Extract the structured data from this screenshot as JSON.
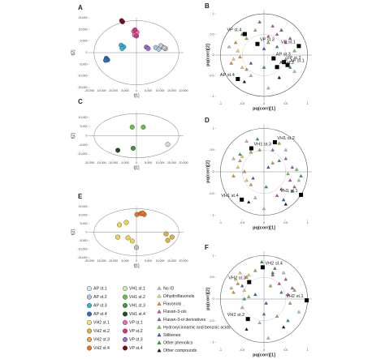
{
  "chart_data": [
    {
      "type": "scatter",
      "label": "A",
      "xlabel": "t[1]",
      "ylabel": "t[2]",
      "xlim": [
        -20000,
        20000
      ],
      "ylim": [
        -15000,
        15000
      ],
      "xticks": [
        {
          "value": -20000,
          "label": "-20,000"
        },
        {
          "value": -15000,
          "label": "-15,000"
        },
        {
          "value": -10000,
          "label": "-10,000"
        },
        {
          "value": -5000,
          "label": "-5,000"
        },
        0,
        {
          "value": 5000,
          "label": "5,000"
        },
        {
          "value": 10000,
          "label": "10,000"
        },
        {
          "value": 15000,
          "label": "15,000"
        },
        {
          "value": 20000,
          "label": "20,000"
        }
      ],
      "yticks": [
        {
          "value": -15000,
          "label": "-15,000"
        },
        {
          "value": -10000,
          "label": "-10,000"
        },
        {
          "value": -5000,
          "label": "-5,000"
        },
        0,
        {
          "value": 5000,
          "label": "5,000"
        },
        {
          "value": 10000,
          "label": "10,000"
        },
        {
          "value": 15000,
          "label": "15,000"
        }
      ],
      "series": [
        {
          "color": "#7a0c1a",
          "x": [
            -6300,
            -5900
          ],
          "values": [
            13800,
            13300
          ]
        },
        {
          "color": "#f06aa8",
          "x": [
            -1200,
            -400,
            -800,
            200
          ],
          "values": [
            9200,
            8400,
            7600,
            8800
          ]
        },
        {
          "color": "#d63384",
          "x": [
            -600,
            0
          ],
          "values": [
            9800,
            7200
          ]
        },
        {
          "color": "#33b5d6",
          "x": [
            -6500,
            -5400,
            -6100
          ],
          "values": [
            3200,
            2500,
            1800
          ]
        },
        {
          "color": "#2f6db5",
          "x": [
            -12800,
            -12200,
            -13100
          ],
          "values": [
            -2400,
            -3100,
            -3300
          ]
        },
        {
          "color": "#9b6bc9",
          "x": [
            4200,
            5000
          ],
          "values": [
            2400,
            1800
          ]
        },
        {
          "color": "#a6c8e6",
          "x": [
            8200,
            9500,
            11000,
            12300
          ],
          "values": [
            2200,
            1500,
            2500,
            1700
          ]
        },
        {
          "color": "#c9c9c9",
          "x": [
            10300,
            11800
          ],
          "values": [
            3000,
            2100
          ]
        }
      ]
    },
    {
      "type": "scatter",
      "label": "B",
      "xlabel": "pq(corr)[1]",
      "ylabel": "pq(corr)[2]",
      "xlim": [
        -1.1,
        1.1
      ],
      "ylim": [
        -1.1,
        1.1
      ],
      "xticks": [
        -1,
        -0.5,
        0,
        0.5,
        1
      ],
      "yticks": [
        -1,
        -0.5,
        0,
        0.5,
        1
      ],
      "series": [
        {
          "color": "#bdbdbd",
          "x": [
            -0.8,
            -0.3,
            0.4,
            0.7,
            0.1
          ],
          "values": [
            0.2,
            -0.5,
            0.6,
            -0.4,
            -0.8
          ]
        },
        {
          "color": "#f2d15a",
          "x": [
            -0.7,
            -0.5,
            -0.6
          ],
          "values": [
            -0.1,
            -0.3,
            0.1
          ]
        },
        {
          "color": "#f08a24",
          "x": [
            -0.75,
            -0.55,
            -0.4,
            -0.65
          ],
          "values": [
            -0.2,
            -0.05,
            -0.35,
            0.3
          ]
        },
        {
          "color": "#e0409a",
          "x": [
            0.3,
            0.5,
            0.2
          ],
          "values": [
            0.5,
            0.3,
            0.7
          ]
        },
        {
          "color": "#9b59b6",
          "x": [
            0.4,
            0.6,
            0.1
          ],
          "values": [
            0.6,
            0.4,
            0.45
          ]
        },
        {
          "color": "#7cc242",
          "x": [
            -0.2,
            0.1,
            0.5,
            -0.4,
            0.7
          ],
          "values": [
            0.6,
            0.3,
            -0.1,
            0.4,
            0.1
          ]
        },
        {
          "color": "#2e5cb8",
          "x": [
            -0.3,
            0.0
          ],
          "values": [
            -0.2,
            0.15
          ]
        },
        {
          "color": "#2ca02c",
          "x": [
            -0.5,
            0.0,
            0.3,
            0.6,
            -0.1
          ],
          "values": [
            0.5,
            -0.3,
            0.2,
            -0.3,
            0.8
          ]
        },
        {
          "color": "#111111",
          "x": [
            -0.45,
            0.35
          ],
          "values": [
            -0.65,
            -0.55
          ]
        }
      ],
      "observations": {
        "labels": [
          "VP st.4",
          "VP st.3",
          "VP st.1",
          "AP st.3",
          "VP st.2",
          "AP st.2",
          "AP st.1",
          "AP st.4"
        ],
        "x": [
          -0.44,
          -0.15,
          0.8,
          0.22,
          0.46,
          0.3,
          0.54,
          -0.6
        ],
        "values": [
          0.51,
          0.27,
          0.22,
          -0.08,
          -0.17,
          -0.29,
          -0.24,
          -0.58
        ]
      }
    },
    {
      "type": "scatter",
      "label": "C",
      "xlabel": "t[1]",
      "ylabel": "t[2]",
      "xlim": [
        -20000,
        20000
      ],
      "ylim": [
        -13000,
        13000
      ],
      "xticks": [
        {
          "value": -20000,
          "label": "-20,000"
        },
        {
          "value": -15000,
          "label": "-15,000"
        },
        {
          "value": -10000,
          "label": "-10,000"
        },
        {
          "value": -5000,
          "label": "-5,000"
        },
        0,
        {
          "value": 5000,
          "label": "5,000"
        },
        {
          "value": 10000,
          "label": "10,000"
        },
        {
          "value": 15000,
          "label": "15,000"
        },
        {
          "value": 20000,
          "label": "20,000"
        }
      ],
      "yticks": [
        {
          "value": -10000,
          "label": "-10,000"
        },
        {
          "value": -5000,
          "label": "-5,000"
        },
        0,
        {
          "value": 5000,
          "label": "5,000"
        },
        {
          "value": 10000,
          "label": "10,000"
        }
      ],
      "series": [
        {
          "color": "#6abf45",
          "x": [
            -1800,
            2900
          ],
          "values": [
            4700,
            4700
          ]
        },
        {
          "color": "#3c9a2e",
          "x": [
            -1400
          ],
          "values": [
            -6800
          ]
        },
        {
          "color": "#1f4d1a",
          "x": [
            -7900
          ],
          "values": [
            -7900
          ]
        },
        {
          "color": "#dcdcdc",
          "x": [
            13300
          ],
          "values": [
            -4700
          ]
        }
      ]
    },
    {
      "type": "scatter",
      "label": "D",
      "xlabel": "pq(corr)[1]",
      "ylabel": "pq(corr)[2]",
      "xlim": [
        -1.1,
        1.1
      ],
      "ylim": [
        -1.1,
        1.1
      ],
      "xticks": [
        -1,
        -0.5,
        0,
        0.5,
        1
      ],
      "yticks": [
        -1,
        -0.5,
        0,
        0.5,
        1
      ],
      "series": [
        {
          "color": "#bdbdbd",
          "x": [
            -0.7,
            -0.2,
            0.5,
            0.8,
            0.0,
            -0.4
          ],
          "values": [
            0.3,
            -0.6,
            0.5,
            -0.2,
            -0.85,
            0.7
          ]
        },
        {
          "color": "#f2d15a",
          "x": [
            -0.6,
            -0.4,
            -0.5
          ],
          "values": [
            0.1,
            -0.2,
            0.35
          ]
        },
        {
          "color": "#f08a24",
          "x": [
            -0.7,
            -0.45,
            -0.3,
            -0.55
          ],
          "values": [
            -0.1,
            0.0,
            -0.3,
            0.25
          ]
        },
        {
          "color": "#e0409a",
          "x": [
            0.4,
            0.6,
            0.3,
            0.7
          ],
          "values": [
            -0.4,
            -0.2,
            -0.55,
            -0.35
          ]
        },
        {
          "color": "#9b59b6",
          "x": [
            0.5,
            0.2,
            0.65
          ],
          "values": [
            0.3,
            0.5,
            0.1
          ]
        },
        {
          "color": "#7cc242",
          "x": [
            -0.1,
            0.2,
            0.55,
            -0.3,
            0.75,
            0.35
          ],
          "values": [
            0.5,
            0.2,
            -0.05,
            0.45,
            0.05,
            0.65
          ]
        },
        {
          "color": "#2e5cb8",
          "x": [
            -0.25,
            0.1,
            0.45
          ],
          "values": [
            -0.15,
            0.1,
            -0.65
          ]
        },
        {
          "color": "#2ca02c",
          "x": [
            -0.55,
            0.05,
            0.35,
            0.65,
            -0.15,
            0.85
          ],
          "values": [
            0.4,
            -0.35,
            0.25,
            -0.45,
            0.75,
            -0.1
          ]
        },
        {
          "color": "#111111",
          "x": [
            -0.35,
            0.5
          ],
          "values": [
            -0.7,
            -0.75
          ]
        }
      ],
      "observations": {
        "labels": [
          "VH1 st.3",
          "VH1 st.2",
          "VH1 st.1",
          "VH1 st.4"
        ],
        "x": [
          -0.29,
          0.25,
          0.85,
          -0.51
        ],
        "values": [
          0.54,
          0.68,
          -0.53,
          -0.64
        ]
      }
    },
    {
      "type": "scatter",
      "label": "E",
      "xlabel": "t[1]",
      "ylabel": "t[2]",
      "xlim": [
        -20000,
        20000
      ],
      "ylim": [
        -15000,
        15000
      ],
      "xticks": [
        {
          "value": -20000,
          "label": "-20,000"
        },
        {
          "value": -15000,
          "label": "-15,000"
        },
        {
          "value": -10000,
          "label": "-10,000"
        },
        {
          "value": -5000,
          "label": "-5,000"
        },
        0,
        {
          "value": 5000,
          "label": "5,000"
        },
        {
          "value": 10000,
          "label": "10,000"
        },
        {
          "value": 15000,
          "label": "15,000"
        },
        {
          "value": 20000,
          "label": "20,000"
        }
      ],
      "yticks": [
        {
          "value": -15000,
          "label": "-15,000"
        },
        {
          "value": -10000,
          "label": "-10,000"
        },
        {
          "value": -5000,
          "label": "-5,000"
        },
        0,
        {
          "value": 5000,
          "label": "5,000"
        },
        {
          "value": 10000,
          "label": "10,000"
        },
        {
          "value": 15000,
          "label": "15,000"
        }
      ],
      "series": [
        {
          "color": "#e8742a",
          "x": [
            200,
            1800,
            3300,
            2600
          ],
          "values": [
            10400,
            10900,
            10400,
            11300
          ]
        },
        {
          "color": "#f3d24a",
          "x": [
            -7200,
            -4300,
            -7900,
            -3600,
            -1800
          ],
          "values": [
            4300,
            5700,
            -2900,
            -3300,
            -5200
          ]
        },
        {
          "color": "#e0b23a",
          "x": [
            12600,
            15100,
            13300
          ],
          "values": [
            -1000,
            -2900,
            -4800
          ]
        },
        {
          "color": "#bfbfbf",
          "x": [
            0
          ],
          "values": [
            -9000
          ]
        }
      ]
    },
    {
      "type": "scatter",
      "label": "F",
      "xlabel": "pq(corr)[1]",
      "ylabel": "pq(corr)[2]",
      "xlim": [
        -1.1,
        1.1
      ],
      "ylim": [
        -1.1,
        1.1
      ],
      "xticks": [
        -1,
        -0.5,
        0,
        0.5,
        1
      ],
      "yticks": [
        -1,
        -0.5,
        0,
        0.5,
        1
      ],
      "series": [
        {
          "color": "#bdbdbd",
          "x": [
            -0.75,
            -0.1,
            0.45,
            0.8,
            0.1,
            -0.5
          ],
          "values": [
            0.25,
            -0.55,
            0.6,
            -0.3,
            -0.9,
            -0.2
          ]
        },
        {
          "color": "#f2d15a",
          "x": [
            -0.65,
            -0.45,
            -0.55,
            -0.35
          ],
          "values": [
            0.45,
            0.2,
            0.6,
            0.55
          ]
        },
        {
          "color": "#f08a24",
          "x": [
            -0.6,
            -0.4,
            -0.7
          ],
          "values": [
            0.35,
            0.5,
            0.15
          ]
        },
        {
          "color": "#e0409a",
          "x": [
            0.35,
            0.55,
            0.2
          ],
          "values": [
            0.35,
            0.1,
            0.55
          ]
        },
        {
          "color": "#9b59b6",
          "x": [
            0.5,
            0.65,
            0.25
          ],
          "values": [
            0.45,
            0.25,
            0.7
          ]
        },
        {
          "color": "#7cc242",
          "x": [
            -0.2,
            0.15,
            0.6,
            -0.35,
            0.7,
            0.3
          ],
          "values": [
            0.65,
            0.3,
            -0.1,
            0.05,
            0.2,
            -0.4
          ]
        },
        {
          "color": "#2e5cb8",
          "x": [
            -0.2,
            0.05,
            -0.5
          ],
          "values": [
            0.1,
            -0.1,
            0.3
          ]
        },
        {
          "color": "#2ca02c",
          "x": [
            -0.45,
            0.0,
            0.4,
            0.55,
            -0.05,
            0.2
          ],
          "values": [
            0.0,
            -0.35,
            0.15,
            -0.5,
            0.85,
            0.6
          ]
        },
        {
          "color": "#111111",
          "x": [
            -0.4,
            0.45
          ],
          "values": [
            -0.7,
            -0.65
          ]
        }
      ],
      "observations": {
        "labels": [
          "VH2 st.4",
          "VH2 st.3",
          "VH2 st.1",
          "VH2 st.2"
        ],
        "x": [
          -0.03,
          -0.34,
          0.98,
          -0.37
        ],
        "values": [
          0.73,
          0.39,
          -0.03,
          -0.46
        ]
      }
    }
  ],
  "legend": {
    "samples": [
      {
        "name": "AP st.1",
        "color": "#d6e8f5"
      },
      {
        "name": "AP st.2",
        "color": "#a6c8e6"
      },
      {
        "name": "AP st.3",
        "color": "#33b5d6"
      },
      {
        "name": "AP st.4",
        "color": "#2f6db5"
      },
      {
        "name": "VH2 st.1",
        "color": "#f6e27a"
      },
      {
        "name": "VH2 st.2",
        "color": "#e0b23a"
      },
      {
        "name": "VH2 st.3",
        "color": "#f3a53a"
      },
      {
        "name": "VH2 st.4",
        "color": "#e8742a"
      },
      {
        "name": "VH1 st.1",
        "color": "#cfe8b8"
      },
      {
        "name": "VH1 st.2",
        "color": "#6abf45"
      },
      {
        "name": "VH1 st.3",
        "color": "#3c9a2e"
      },
      {
        "name": "VH1 st.4",
        "color": "#1f4d1a"
      },
      {
        "name": "VP st.1",
        "color": "#f06aa8"
      },
      {
        "name": "VP st.2",
        "color": "#d63384"
      },
      {
        "name": "VP st.3",
        "color": "#9b6bc9"
      },
      {
        "name": "VP st.4",
        "color": "#7a0c1a"
      }
    ],
    "compounds": [
      {
        "name": "No ID",
        "color": "#bdbdbd"
      },
      {
        "name": "Dihydroflavonols",
        "color": "#f2d15a"
      },
      {
        "name": "Flavonols",
        "color": "#f08a24"
      },
      {
        "name": "Flavan-3-ols",
        "color": "#e0409a"
      },
      {
        "name": "Flavan-3-ol derivatives",
        "color": "#9b59b6"
      },
      {
        "name": "Hydroxycinnamic and benzoic acids",
        "color": "#7cc242"
      },
      {
        "name": "Stilbenes",
        "color": "#2e5cb8"
      },
      {
        "name": "Other phenolics",
        "color": "#2ca02c"
      },
      {
        "name": "Other compounds",
        "color": "#111111"
      }
    ]
  }
}
